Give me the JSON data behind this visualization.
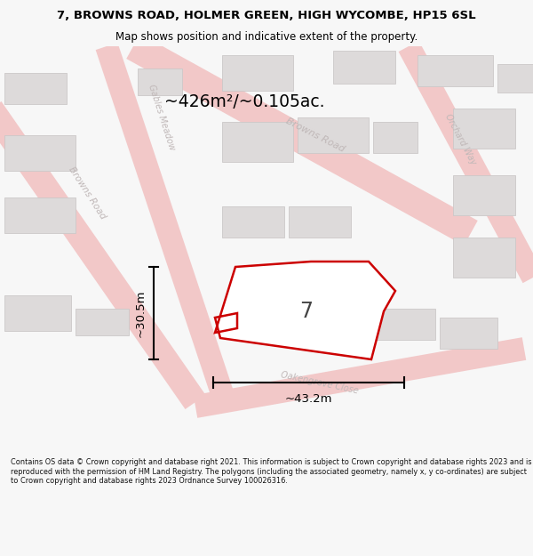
{
  "title_line1": "7, BROWNS ROAD, HOLMER GREEN, HIGH WYCOMBE, HP15 6SL",
  "title_line2": "Map shows position and indicative extent of the property.",
  "area_label": "~426m²/~0.105ac.",
  "width_label": "~43.2m",
  "height_label": "~30.5m",
  "property_number": "7",
  "footer_text": "Contains OS data © Crown copyright and database right 2021. This information is subject to Crown copyright and database rights 2023 and is reproduced with the permission of HM Land Registry. The polygons (including the associated geometry, namely x, y co-ordinates) are subject to Crown copyright and database rights 2023 Ordnance Survey 100026316.",
  "bg_color": "#f7f7f7",
  "map_bg": "#eeecec",
  "road_color": "#f2c8c8",
  "building_color": "#dddada",
  "building_stroke": "#ccc8c8",
  "property_fill": "#ffffff",
  "property_stroke": "#cc0000",
  "road_label_color": "#c0b8b8",
  "dim_color": "#000000",
  "title_color": "#000000",
  "footer_color": "#111111"
}
